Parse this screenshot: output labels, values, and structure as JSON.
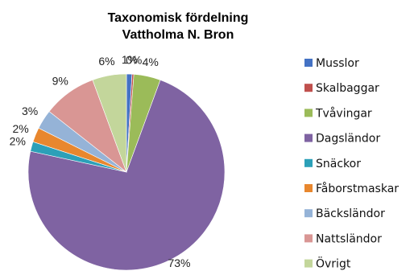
{
  "chart_data": {
    "type": "pie",
    "title": "Taxonomisk fördelning",
    "subtitle": "Vattholma N. Bron",
    "legend_position": "right",
    "slices": [
      {
        "label": "Musslor",
        "value": 0.9,
        "display": "1%",
        "color": "#4472C4"
      },
      {
        "label": "Skalbaggar",
        "value": 0.3,
        "display": "0%",
        "color": "#C0504D"
      },
      {
        "label": "Tvåvingar",
        "value": 4.4,
        "display": "4%",
        "color": "#9BBB59"
      },
      {
        "label": "Dagsländor",
        "value": 72.8,
        "display": "73%",
        "color": "#7F63A2"
      },
      {
        "label": "Snäckor",
        "value": 1.6,
        "display": "2%",
        "color": "#2CA0B8"
      },
      {
        "label": "Fåborstmaskar",
        "value": 2.4,
        "display": "2%",
        "color": "#E8872E"
      },
      {
        "label": "Bäcksländor",
        "value": 3.2,
        "display": "3%",
        "color": "#95B3D7"
      },
      {
        "label": "Nattsländor",
        "value": 8.8,
        "display": "9%",
        "color": "#D99694"
      },
      {
        "label": "Övrigt",
        "value": 5.6,
        "display": "6%",
        "color": "#C3D69B"
      }
    ]
  }
}
